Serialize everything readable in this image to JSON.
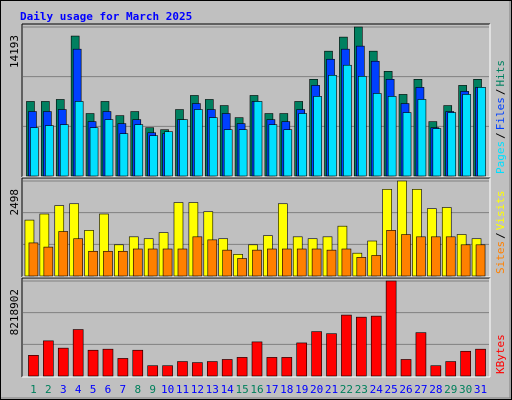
{
  "chart_data": [
    {
      "type": "bar",
      "title": "Daily usage for March 2025",
      "series": [
        {
          "name": "Hits",
          "color": "#008060",
          "values": [
            7100,
            7100,
            7290,
            13330,
            5950,
            7100,
            5750,
            6140,
            4600,
            4410,
            6330,
            7670,
            7290,
            6710,
            5560,
            7670,
            5950,
            5950,
            7100,
            9210,
            11890,
            13230,
            14193,
            11890,
            9970,
            7770,
            9210,
            5180,
            6710,
            8630,
            9210
          ]
        },
        {
          "name": "Files",
          "color": "#0040ff",
          "values": [
            6140,
            6140,
            6330,
            12080,
            5180,
            6140,
            4990,
            5370,
            4120,
            4030,
            5370,
            6900,
            6330,
            5950,
            4990,
            7100,
            5370,
            5180,
            6330,
            8630,
            11120,
            12080,
            12370,
            10930,
            9210,
            6900,
            8440,
            4600,
            6140,
            8060,
            8440
          ]
        },
        {
          "name": "Pages",
          "color": "#00e0ff",
          "values": [
            4600,
            4800,
            4890,
            7100,
            4600,
            5370,
            4030,
            4890,
            3840,
            4220,
            5370,
            6330,
            5560,
            4410,
            4410,
            7100,
            4890,
            4410,
            5950,
            7580,
            9590,
            10550,
            9490,
            7860,
            7580,
            6040,
            7290,
            4510,
            6040,
            7770,
            8440
          ]
        }
      ],
      "legend_separator": "/",
      "ylim": [
        0,
        14193
      ],
      "yticks": [
        14193
      ]
    },
    {
      "type": "bar",
      "series": [
        {
          "name": "Visits",
          "color": "#ffff00",
          "values": [
            1470,
            1630,
            1850,
            1900,
            1200,
            1630,
            820,
            1030,
            980,
            1140,
            1930,
            1930,
            1690,
            980,
            570,
            820,
            1060,
            1900,
            1030,
            980,
            1030,
            1310,
            600,
            920,
            2280,
            2498,
            2280,
            1770,
            1800,
            1090,
            980
          ]
        },
        {
          "name": "Sites",
          "color": "#ff8000",
          "values": [
            870,
            760,
            1170,
            980,
            650,
            650,
            650,
            710,
            710,
            710,
            710,
            1030,
            950,
            680,
            460,
            680,
            710,
            710,
            710,
            710,
            680,
            710,
            490,
            540,
            1200,
            1090,
            1030,
            1030,
            1030,
            820,
            820
          ]
        }
      ],
      "legend_separator": "/",
      "ylim": [
        0,
        2498
      ],
      "yticks": [
        2498
      ]
    },
    {
      "type": "bar",
      "series": [
        {
          "name": "KBytes",
          "color": "#ff0000",
          "values": [
            1790000,
            3040000,
            2410000,
            4020000,
            2230000,
            2320000,
            1520000,
            2230000,
            890000,
            890000,
            1250000,
            1160000,
            1250000,
            1430000,
            1610000,
            2950000,
            1610000,
            1610000,
            2860000,
            3840000,
            3660000,
            5270000,
            5090000,
            5180000,
            8218902,
            1430000,
            3750000,
            890000,
            1250000,
            2140000,
            2320000
          ]
        }
      ],
      "ylim": [
        0,
        8218902
      ],
      "yticks": [
        8218902
      ],
      "categories": [
        "1",
        "2",
        "3",
        "4",
        "5",
        "6",
        "7",
        "8",
        "9",
        "10",
        "11",
        "12",
        "13",
        "14",
        "15",
        "16",
        "17",
        "18",
        "19",
        "20",
        "21",
        "22",
        "23",
        "24",
        "25",
        "26",
        "27",
        "28",
        "29",
        "30",
        "31"
      ],
      "category_colors": [
        "#00805c",
        "#00805c",
        "#0000ff",
        "#0000ff",
        "#0000ff",
        "#0000ff",
        "#0000ff",
        "#00805c",
        "#00805c",
        "#0000ff",
        "#0000ff",
        "#0000ff",
        "#0000ff",
        "#0000ff",
        "#00805c",
        "#00805c",
        "#0000ff",
        "#0000ff",
        "#0000ff",
        "#0000ff",
        "#0000ff",
        "#00805c",
        "#00805c",
        "#0000ff",
        "#0000ff",
        "#0000ff",
        "#0000ff",
        "#0000ff",
        "#00805c",
        "#00805c",
        "#0000ff"
      ]
    }
  ]
}
